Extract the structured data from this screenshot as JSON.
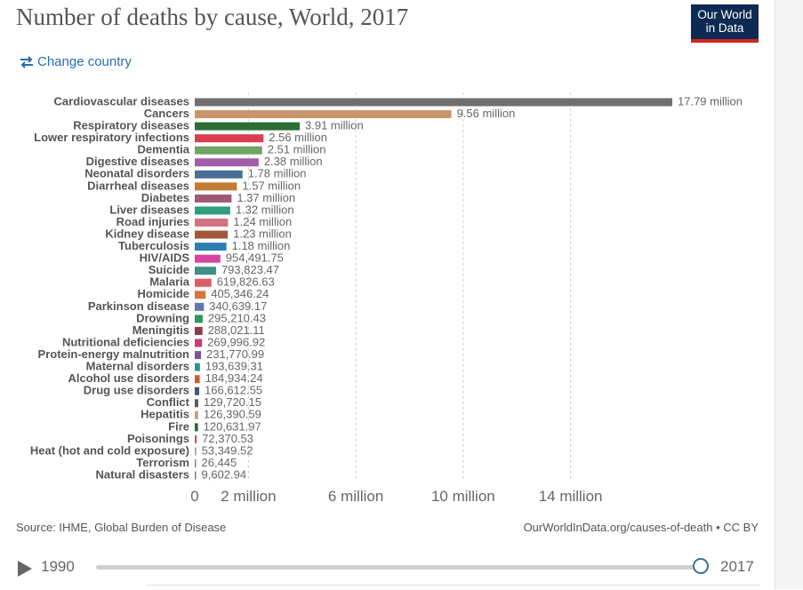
{
  "title": "Number of deaths by cause, World, 2017",
  "logo": {
    "line1": "Our World",
    "line2": "in Data"
  },
  "controls": {
    "change_country_label": "Change country",
    "change_country_icon": "swap-arrows-icon"
  },
  "source": "Source: IHME, Global Burden of Disease",
  "credit": "OurWorldInData.org/causes-of-death • CC BY",
  "timeline": {
    "start_year": "1990",
    "end_year": "2017",
    "selected_year": "2017",
    "play_icon": "play-icon"
  },
  "chart_data": {
    "type": "bar",
    "orientation": "horizontal",
    "xlim": [
      0,
      18000000
    ],
    "grid": true,
    "x_ticks": [
      {
        "value": 0,
        "label": "0"
      },
      {
        "value": 2000000,
        "label": "2 million"
      },
      {
        "value": 6000000,
        "label": "6 million"
      },
      {
        "value": 10000000,
        "label": "10 million"
      },
      {
        "value": 14000000,
        "label": "14 million"
      }
    ],
    "categories": [
      "Cardiovascular diseases",
      "Cancers",
      "Respiratory diseases",
      "Lower respiratory infections",
      "Dementia",
      "Digestive diseases",
      "Neonatal disorders",
      "Diarrheal diseases",
      "Diabetes",
      "Liver diseases",
      "Road injuries",
      "Kidney disease",
      "Tuberculosis",
      "HIV/AIDS",
      "Suicide",
      "Malaria",
      "Homicide",
      "Parkinson disease",
      "Drowning",
      "Meningitis",
      "Nutritional deficiencies",
      "Protein-energy malnutrition",
      "Maternal disorders",
      "Alcohol use disorders",
      "Drug use disorders",
      "Conflict",
      "Hepatitis",
      "Fire",
      "Poisonings",
      "Heat (hot and cold exposure)",
      "Terrorism",
      "Natural disasters"
    ],
    "values": [
      17790000,
      9560000,
      3910000,
      2560000,
      2510000,
      2380000,
      1780000,
      1570000,
      1370000,
      1320000,
      1240000,
      1230000,
      1180000,
      954491.75,
      793823.47,
      619826.63,
      405346.24,
      340639.17,
      295210.43,
      288021.11,
      269996.92,
      231770.99,
      193639.31,
      184934.24,
      166612.55,
      129720.15,
      126390.59,
      120631.97,
      72370.53,
      53349.52,
      26445,
      9602.94
    ],
    "value_labels": [
      "17.79 million",
      "9.56 million",
      "3.91 million",
      "2.56 million",
      "2.51 million",
      "2.38 million",
      "1.78 million",
      "1.57 million",
      "1.37 million",
      "1.32 million",
      "1.24 million",
      "1.23 million",
      "1.18 million",
      "954,491.75",
      "793,823.47",
      "619,826.63",
      "405,346.24",
      "340,639.17",
      "295,210.43",
      "288,021.11",
      "269,996.92",
      "231,770.99",
      "193,639.31",
      "184,934.24",
      "166,612.55",
      "129,720.15",
      "126,390.59",
      "120,631.97",
      "72,370.53",
      "53,349.52",
      "26,445",
      "9,602.94"
    ],
    "colors": [
      "#6d6f71",
      "#c7956a",
      "#2c6e34",
      "#d93f50",
      "#6fa565",
      "#a35ca8",
      "#4a6e94",
      "#c27b33",
      "#9e5877",
      "#2e9e7f",
      "#d27283",
      "#a05a3a",
      "#2d7fb0",
      "#d843a1",
      "#3f8f85",
      "#e05c64",
      "#d9743d",
      "#5f79ac",
      "#2b9a5b",
      "#8e3a4a",
      "#c83a7a",
      "#7a4f9c",
      "#2a9595",
      "#d8572a",
      "#3f5a78",
      "#5c5c5c",
      "#c6a07a",
      "#1e6e38",
      "#e04a5a",
      "#9a9a9a",
      "#7a9070",
      "#8a7088"
    ]
  }
}
